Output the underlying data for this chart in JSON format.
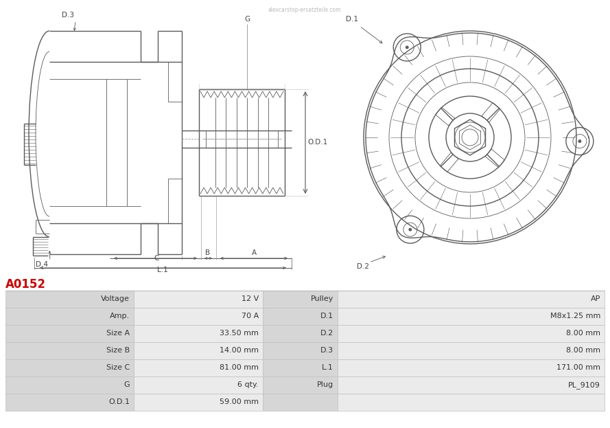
{
  "title": "A0152",
  "title_color": "#cc0000",
  "bg_color": "#ffffff",
  "table_rows": [
    [
      "Voltage",
      "12 V",
      "Pulley",
      "AP"
    ],
    [
      "Amp.",
      "70 A",
      "D.1",
      "M8x1.25 mm"
    ],
    [
      "Size A",
      "33.50 mm",
      "D.2",
      "8.00 mm"
    ],
    [
      "Size B",
      "14.00 mm",
      "D.3",
      "8.00 mm"
    ],
    [
      "Size C",
      "81.00 mm",
      "L.1",
      "171.00 mm"
    ],
    [
      "G",
      "6 qty.",
      "Plug",
      "PL_9109"
    ],
    [
      "O.D.1",
      "59.00 mm",
      "",
      ""
    ]
  ],
  "line_color": "#5a5a5a",
  "label_color": "#444444",
  "dim_color": "#555555",
  "watermark": "alexcarstop-ersatzteile.com",
  "watermark_color": "#bbbbbb"
}
